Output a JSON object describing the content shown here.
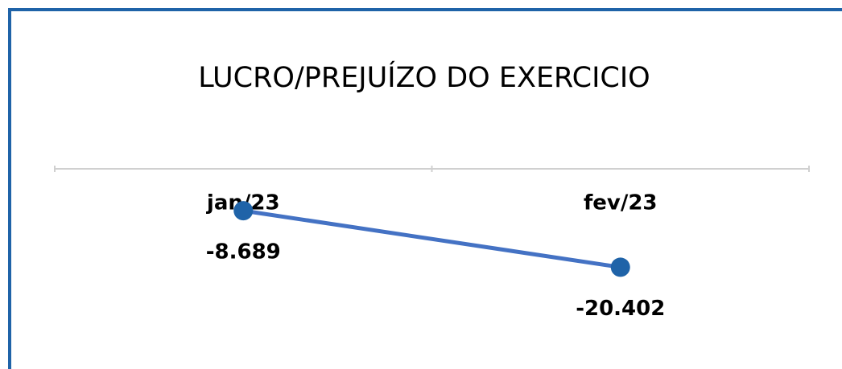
{
  "chart_data": {
    "type": "line",
    "title": "LUCRO/PREJUÍZO DO EXERCICIO",
    "categories": [
      "jan/23",
      "fev/23"
    ],
    "values": [
      -8689,
      -20402
    ],
    "value_labels": [
      "-8.689",
      "-20.402"
    ],
    "color": "#4472c4",
    "marker_color": "#1f63a8",
    "ylim": [
      -25000,
      0
    ]
  }
}
